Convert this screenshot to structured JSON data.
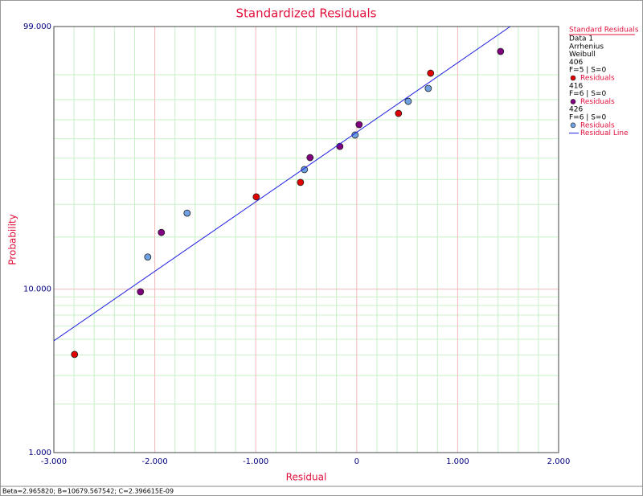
{
  "chart_data": {
    "type": "scatter",
    "title": "Standardized Residuals",
    "xlabel": "Residual",
    "ylabel": "Probability",
    "yscale": "weibull",
    "xlim": [
      -3,
      2
    ],
    "ylim": [
      1,
      99
    ],
    "xticks": [
      {
        "value": -3,
        "label": "-3.000"
      },
      {
        "value": -2,
        "label": "-2.000"
      },
      {
        "value": -1,
        "label": "-1.000"
      },
      {
        "value": 0,
        "label": "0"
      },
      {
        "value": 1,
        "label": "1.000"
      },
      {
        "value": 2,
        "label": "2.000"
      }
    ],
    "yticks": [
      {
        "value": 1,
        "label": "1.000"
      },
      {
        "value": 10,
        "label": "10.000"
      },
      {
        "value": 99,
        "label": "99.000"
      }
    ],
    "x_minor_ticks": [
      -2.8,
      -2.6,
      -2.4,
      -2.2,
      -1.8,
      -1.6,
      -1.4,
      -1.2,
      -0.8,
      -0.6,
      -0.4,
      -0.2,
      0.2,
      0.4,
      0.6,
      0.8,
      1.2,
      1.4,
      1.6,
      1.8
    ],
    "y_minor_ticks": [
      2,
      3,
      4,
      5,
      6,
      7,
      8,
      9,
      20,
      30,
      40,
      50,
      60,
      70,
      80,
      90
    ],
    "grid": true,
    "legend_title": "Standard Residuals",
    "legend_lines": [
      "Data 1",
      "Arrhenius",
      "Weibull"
    ],
    "series": [
      {
        "group": "406",
        "stats": "F=5 | S=0",
        "name": "Residuals",
        "color": "#e00000",
        "x": [
          -2.795,
          -0.995,
          -0.557,
          0.414,
          0.732
        ],
        "values": [
          4.04,
          32.8,
          38.7,
          73.3,
          90.5
        ]
      },
      {
        "group": "416",
        "stats": "F=6 | S=0",
        "name": "Residuals",
        "color": "#800080",
        "x": [
          -2.142,
          -1.935,
          -0.462,
          -0.167,
          0.024,
          1.425
        ],
        "values": [
          9.65,
          21.2,
          50.3,
          56.0,
          67.5,
          96.0
        ]
      },
      {
        "group": "426",
        "stats": "F=6 | S=0",
        "name": "Residuals",
        "color": "#6fa0e0",
        "x": [
          -2.07,
          -1.68,
          -0.518,
          -0.016,
          0.51,
          0.709
        ],
        "values": [
          15.4,
          27.0,
          44.5,
          62.0,
          79.2,
          84.9
        ]
      },
      {
        "name": "Residual Line",
        "type": "line",
        "color": "#2020e0",
        "x": [
          -3,
          1.521
        ],
        "values": [
          4.89,
          99
        ]
      }
    ],
    "footer": "Beta=2.965820; B=10679.567542; C=2.396615E-09"
  }
}
